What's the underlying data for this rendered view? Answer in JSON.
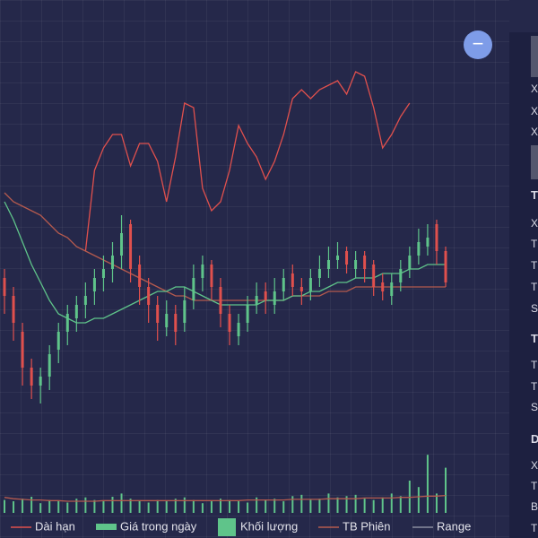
{
  "chart_data": {
    "type": "candlestick",
    "open": [
      50,
      46,
      38,
      30,
      26,
      28,
      34,
      38,
      41,
      44,
      47,
      50,
      52,
      55,
      62,
      53,
      48,
      44,
      39,
      42,
      40,
      45,
      50,
      53,
      48,
      42,
      37,
      40,
      44,
      47,
      44,
      47,
      51,
      48,
      47,
      50,
      52,
      54,
      56,
      52,
      55,
      53,
      49,
      46,
      49,
      52,
      55,
      57,
      62,
      56
    ],
    "high": [
      52,
      48,
      40,
      32,
      30,
      35,
      40,
      44,
      46,
      49,
      52,
      55,
      58,
      64,
      63,
      55,
      50,
      46,
      45,
      44,
      48,
      53,
      55,
      54,
      50,
      44,
      42,
      46,
      49,
      49,
      50,
      52,
      53,
      50,
      52,
      55,
      57,
      58,
      57,
      56,
      56,
      54,
      51,
      51,
      54,
      57,
      61,
      62,
      63,
      57
    ],
    "low": [
      42,
      36,
      26,
      23,
      22,
      25,
      31,
      35,
      38,
      41,
      44,
      47,
      49,
      52,
      49,
      44,
      40,
      36,
      37,
      35,
      38,
      43,
      47,
      45,
      39,
      35,
      35,
      38,
      42,
      42,
      42,
      45,
      46,
      44,
      45,
      48,
      50,
      52,
      51,
      50,
      49,
      46,
      45,
      44,
      47,
      50,
      53,
      55,
      53,
      48
    ],
    "close": [
      46,
      40,
      30,
      26,
      28,
      33,
      38,
      42,
      44,
      46,
      50,
      52,
      55,
      60,
      52,
      48,
      44,
      40,
      42,
      38,
      45,
      50,
      53,
      48,
      42,
      38,
      40,
      44,
      46,
      45,
      47,
      50,
      48,
      47,
      50,
      52,
      54,
      55,
      53,
      54,
      52,
      48,
      47,
      49,
      52,
      55,
      58,
      59,
      56,
      49
    ],
    "up_color": "#5fc48a",
    "down_color": "#e0504d",
    "ylim": [
      0,
      100
    ],
    "lines": [
      {
        "color": "#e0504d",
        "values": [
          null,
          null,
          null,
          null,
          null,
          null,
          null,
          null,
          null,
          56,
          74,
          79,
          82,
          82,
          75,
          80,
          80,
          76,
          67,
          77,
          89,
          88,
          70,
          65,
          67,
          74,
          84,
          80,
          77,
          72,
          76,
          82,
          90,
          92,
          90,
          92,
          93,
          94,
          91,
          96,
          95,
          88,
          79,
          82,
          86,
          89,
          null,
          null,
          null,
          null
        ]
      },
      {
        "color": "#b55a4e",
        "values": [
          69,
          67,
          66,
          65,
          64,
          62,
          60,
          59,
          57,
          56,
          55,
          54,
          53,
          52,
          51,
          50,
          49,
          48,
          47,
          46,
          46,
          45,
          45,
          45,
          45,
          45,
          45,
          45,
          45,
          45,
          45,
          45,
          46,
          46,
          46,
          46,
          47,
          47,
          47,
          48,
          48,
          48,
          48,
          48,
          48,
          48,
          48,
          48,
          48,
          48
        ]
      },
      {
        "color": "#5fc48a",
        "values": [
          67,
          63,
          58,
          53,
          49,
          45,
          42,
          41,
          40,
          40,
          41,
          41,
          42,
          43,
          44,
          45,
          46,
          47,
          47,
          48,
          48,
          47,
          46,
          45,
          44,
          44,
          44,
          44,
          44,
          45,
          45,
          45,
          46,
          46,
          47,
          47,
          48,
          49,
          49,
          50,
          50,
          50,
          51,
          51,
          51,
          52,
          52,
          53,
          53,
          53
        ]
      }
    ],
    "volume": {
      "color": "#5fc48a",
      "ylim": [
        0,
        100
      ],
      "values": [
        20,
        18,
        22,
        25,
        15,
        20,
        18,
        16,
        22,
        24,
        20,
        18,
        25,
        30,
        22,
        18,
        16,
        20,
        18,
        22,
        24,
        20,
        15,
        18,
        22,
        20,
        18,
        16,
        24,
        20,
        22,
        18,
        26,
        28,
        20,
        22,
        30,
        24,
        26,
        28,
        22,
        20,
        24,
        30,
        26,
        50,
        40,
        90,
        30,
        70
      ],
      "avg": {
        "color": "#b55a4e",
        "values": [
          24,
          22,
          21,
          20,
          20,
          19,
          19,
          18,
          18,
          18,
          18,
          19,
          19,
          19,
          19,
          19,
          19,
          19,
          19,
          19,
          19,
          19,
          19,
          19,
          19,
          19,
          19,
          20,
          20,
          20,
          20,
          20,
          21,
          21,
          21,
          21,
          22,
          22,
          22,
          22,
          23,
          23,
          23,
          23,
          24,
          24,
          25,
          26,
          26,
          27
        ]
      }
    },
    "legend": [
      {
        "label": "Dài hạn",
        "color": "#e0504d",
        "shape": "line"
      },
      {
        "label": "Giá trong ngày",
        "color": "#5fc48a",
        "shape": "bar"
      },
      {
        "label": "Khối lượng",
        "color": "#5fc48a",
        "shape": "square"
      },
      {
        "label": "TB Phiên",
        "color": "#b55a4e",
        "shape": "line"
      },
      {
        "label": "Range",
        "color": "#8a8ca0",
        "shape": "line"
      }
    ]
  },
  "sidebar": {
    "items": [
      {
        "text": "X",
        "bold": false
      },
      {
        "text": "X",
        "bold": false
      },
      {
        "text": "X",
        "bold": false
      },
      {
        "text": "T",
        "bold": true
      },
      {
        "text": "X",
        "bold": false
      },
      {
        "text": "T",
        "bold": false
      },
      {
        "text": "T",
        "bold": false
      },
      {
        "text": "T",
        "bold": false
      },
      {
        "text": "S",
        "bold": false
      },
      {
        "text": "T",
        "bold": true
      },
      {
        "text": "T",
        "bold": false
      },
      {
        "text": "T",
        "bold": false
      },
      {
        "text": "S",
        "bold": false
      },
      {
        "text": "D",
        "bold": true
      },
      {
        "text": "X",
        "bold": false
      },
      {
        "text": "T",
        "bold": false
      },
      {
        "text": "B",
        "bold": false
      },
      {
        "text": "T",
        "bold": false
      }
    ]
  }
}
